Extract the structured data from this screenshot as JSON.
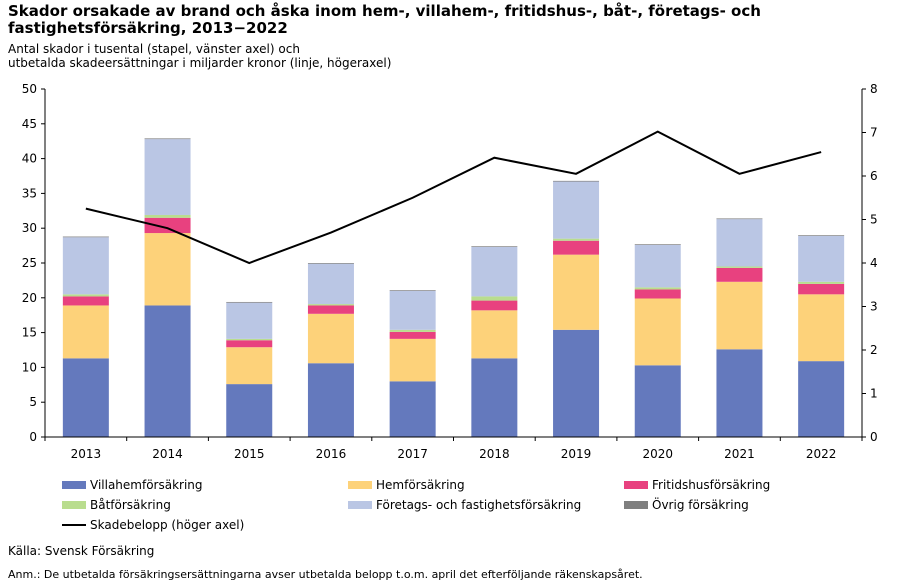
{
  "title": "Skador orsakade av brand och åska inom hem-, villahem-, fritidshus-, båt-, företags- och fastighetsförsäkring, 2013−2022",
  "subtitle": "Antal skador i tusental (stapel, vänster axel) och\nutbetalda skadeersättningar i miljarder kronor (linje, högeraxel)",
  "source": "Källa: Svensk Försäkring",
  "note": "Anm.: De utbetalda försäkringsersättningarna avser utbetalda belopp t.o.m. april det efterföljande räkenskapsåret.",
  "chart_data": {
    "type": "bar",
    "stacked": true,
    "categories": [
      "2013",
      "2014",
      "2015",
      "2016",
      "2017",
      "2018",
      "2019",
      "2020",
      "2021",
      "2022"
    ],
    "ylim": [
      0,
      50
    ],
    "yticks": [
      0,
      5,
      10,
      15,
      20,
      25,
      30,
      35,
      40,
      45,
      50
    ],
    "y2lim": [
      0,
      8
    ],
    "y2ticks": [
      0,
      1,
      2,
      3,
      4,
      5,
      6,
      7,
      8
    ],
    "series": [
      {
        "name": "Villahemförsäkring",
        "color": "#6479bd",
        "values": [
          11.3,
          18.9,
          7.6,
          10.6,
          8.0,
          11.3,
          15.4,
          10.3,
          12.6,
          10.9
        ]
      },
      {
        "name": "Hemförsäkring",
        "color": "#fdd27a",
        "values": [
          7.6,
          10.4,
          5.3,
          7.1,
          6.1,
          6.9,
          10.8,
          9.6,
          9.7,
          9.6
        ]
      },
      {
        "name": "Fritidshusförsäkring",
        "color": "#e8417f",
        "values": [
          1.3,
          2.2,
          1.0,
          1.2,
          1.0,
          1.4,
          2.0,
          1.3,
          2.0,
          1.5
        ]
      },
      {
        "name": "Båtförsäkring",
        "color": "#b9dd8e",
        "values": [
          0.3,
          0.4,
          0.2,
          0.2,
          0.3,
          0.6,
          0.3,
          0.3,
          0.2,
          0.3
        ]
      },
      {
        "name": "Företags- och fastighetsförsäkring",
        "color": "#bac6e4",
        "values": [
          8.2,
          10.9,
          5.2,
          5.8,
          5.6,
          7.1,
          8.2,
          6.1,
          6.8,
          6.6
        ]
      },
      {
        "name": "Övrig försäkring",
        "color": "#7f7f7f",
        "values": [
          0.1,
          0.1,
          0.1,
          0.1,
          0.1,
          0.1,
          0.1,
          0.1,
          0.1,
          0.1
        ]
      }
    ],
    "line": {
      "name": "Skadebelopp (höger axel)",
      "color": "#000000",
      "axis": "right",
      "values": [
        5.25,
        4.8,
        4.0,
        4.7,
        5.5,
        6.42,
        6.05,
        7.02,
        6.05,
        6.55
      ]
    }
  }
}
